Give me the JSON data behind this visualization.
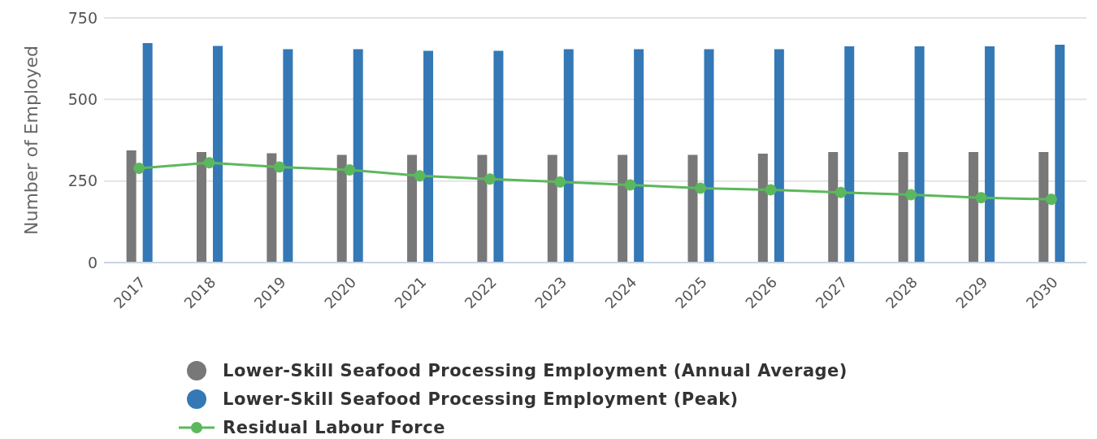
{
  "chart_data": {
    "type": "bar",
    "ylabel": "Number of Employed",
    "categories": [
      "2017",
      "2018",
      "2019",
      "2020",
      "2021",
      "2022",
      "2023",
      "2024",
      "2025",
      "2026",
      "2027",
      "2028",
      "2029",
      "2030"
    ],
    "series": [
      {
        "name": "Lower-Skill Seafood Processing Employment (Annual Average)",
        "color": "#787878",
        "values": [
          344,
          339,
          335,
          330,
          330,
          330,
          330,
          330,
          330,
          334,
          339,
          339,
          339,
          339
        ]
      },
      {
        "name": "Lower-Skill Seafood Processing Employment (Peak)",
        "color": "#3478b6",
        "values": [
          673,
          664,
          654,
          654,
          649,
          649,
          654,
          654,
          654,
          654,
          663,
          663,
          663,
          668
        ]
      },
      {
        "name": "Residual Labour Force",
        "type": "line",
        "color": "#5cb85c",
        "marker": "circle",
        "values": [
          289,
          306,
          293,
          284,
          266,
          256,
          247,
          238,
          228,
          223,
          215,
          208,
          199,
          194
        ]
      }
    ],
    "ylim": [
      0,
      750
    ],
    "yticks": [
      0,
      250,
      500,
      750
    ],
    "grid": "y",
    "legend": "bottom"
  }
}
